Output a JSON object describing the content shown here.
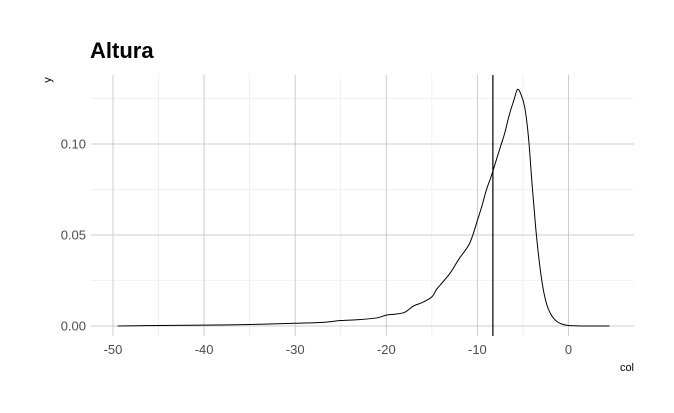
{
  "chart_data": {
    "type": "line",
    "title": "Altura",
    "xlabel": "col",
    "ylabel": "y",
    "xlim": [
      -50,
      5
    ],
    "ylim": [
      0,
      0.13
    ],
    "x_ticks": [
      -50,
      -40,
      -30,
      -20,
      -10,
      0
    ],
    "x_tick_labels": [
      "-50",
      "-40",
      "-30",
      "-20",
      "-10",
      "0"
    ],
    "y_ticks": [
      0,
      0.05,
      0.1
    ],
    "y_tick_labels": [
      "0.00",
      "0.05",
      "0.10"
    ],
    "grid": true,
    "vline_x": -8.3,
    "series": [
      {
        "x": [
          -49.5,
          -45,
          -40,
          -35,
          -30,
          -27,
          -25,
          -23,
          -21,
          -20,
          -19,
          -18,
          -17,
          -16,
          -15,
          -14.5,
          -14,
          -13,
          -12,
          -11,
          -10.5,
          -10,
          -9.5,
          -9,
          -8.5,
          -8,
          -7.5,
          -7,
          -6.5,
          -6,
          -5.6,
          -5.2,
          -4.8,
          -4.4,
          -4,
          -3.6,
          -3.2,
          -2.8,
          -2.4,
          -2,
          -1.6,
          -1.2,
          -0.8,
          -0.4,
          0,
          1,
          2,
          3,
          4.5
        ],
        "y": [
          0,
          0.0003,
          0.0005,
          0.0008,
          0.0015,
          0.002,
          0.003,
          0.0035,
          0.0045,
          0.006,
          0.0065,
          0.0075,
          0.011,
          0.013,
          0.016,
          0.02,
          0.023,
          0.029,
          0.037,
          0.044,
          0.05,
          0.058,
          0.066,
          0.075,
          0.082,
          0.09,
          0.098,
          0.106,
          0.116,
          0.124,
          0.13,
          0.127,
          0.12,
          0.104,
          0.078,
          0.054,
          0.035,
          0.021,
          0.012,
          0.007,
          0.004,
          0.0022,
          0.0012,
          0.0006,
          0.0003,
          0.0001,
          0,
          0,
          0
        ]
      }
    ]
  }
}
